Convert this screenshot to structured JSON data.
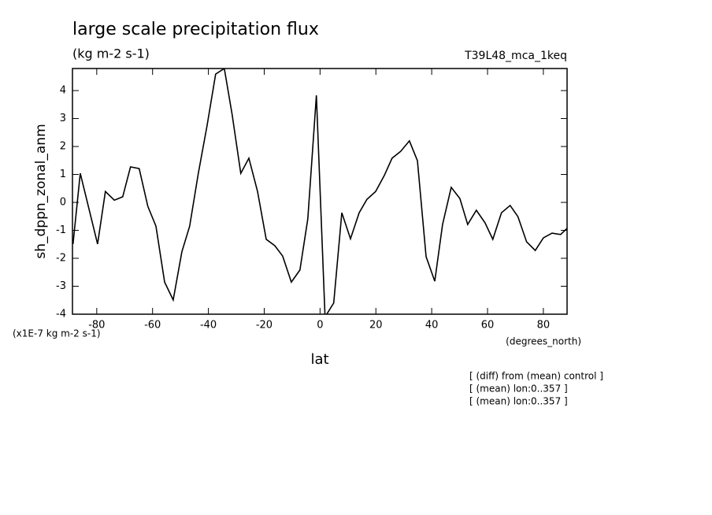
{
  "chart_data": {
    "type": "line",
    "title": "large scale precipitation flux",
    "subtitle": "(kg m-2 s-1)",
    "run_label": "T39L48_mca_1keq",
    "y_label": "sh_dppn_zonal_anm",
    "x_label": "lat",
    "y_units": "(x1E-7 kg m-2 s-1)",
    "x_units": "(degrees_north)",
    "annotations": [
      "[ (diff) from (mean) control ]",
      "[ (mean) lon:0..357 ]",
      "[ (mean) lon:0..357 ]"
    ],
    "x": [
      -88.5,
      -85.9,
      -79.7,
      -76.9,
      -73.7,
      -70.7,
      -67.9,
      -64.8,
      -61.7,
      -58.8,
      -55.7,
      -52.6,
      -49.5,
      -46.7,
      -43.6,
      -40.5,
      -37.4,
      -34.3,
      -31.5,
      -28.4,
      -25.5,
      -22.4,
      -19.3,
      -16.2,
      -13.4,
      -10.3,
      -7.2,
      -4.4,
      -1.3,
      1.8,
      4.9,
      7.8,
      10.9,
      14.0,
      16.8,
      19.9,
      23.0,
      25.8,
      28.9,
      32.0,
      34.9,
      38.0,
      41.1,
      43.9,
      47.0,
      50.1,
      52.9,
      56.0,
      59.1,
      61.9,
      65.0,
      68.1,
      70.9,
      74.0,
      77.1,
      80.0,
      83.1,
      86.2,
      88.5
    ],
    "series": [
      {
        "name": "sh_dppn_zonal_anm",
        "color": "#000000",
        "values": [
          -1.49,
          1.04,
          -1.49,
          0.39,
          0.08,
          0.2,
          1.27,
          1.21,
          -0.14,
          -0.85,
          -2.85,
          -3.49,
          -1.77,
          -0.85,
          1.04,
          2.73,
          4.59,
          4.79,
          3.15,
          1.04,
          1.58,
          0.39,
          -1.32,
          -1.55,
          -1.92,
          -2.85,
          -2.42,
          -0.59,
          3.83,
          -4.1,
          -3.6,
          -0.37,
          -1.3,
          -0.37,
          0.11,
          0.39,
          0.96,
          1.58,
          1.83,
          2.2,
          1.49,
          -1.94,
          -2.82,
          -0.79,
          0.54,
          0.14,
          -0.79,
          -0.28,
          -0.73,
          -1.32,
          -0.37,
          -0.11,
          -0.51,
          -1.41,
          -1.72,
          -1.27,
          -1.1,
          -1.15,
          -0.93
        ]
      }
    ],
    "xlim": [
      -88.7,
      88.5
    ],
    "ylim": [
      -4,
      4.79
    ],
    "xticks": [
      -80,
      -60,
      -40,
      -20,
      0,
      20,
      40,
      60,
      80
    ],
    "yticks": [
      -4,
      -3,
      -2,
      -1,
      0,
      1,
      2,
      3,
      4
    ],
    "grid": false
  }
}
